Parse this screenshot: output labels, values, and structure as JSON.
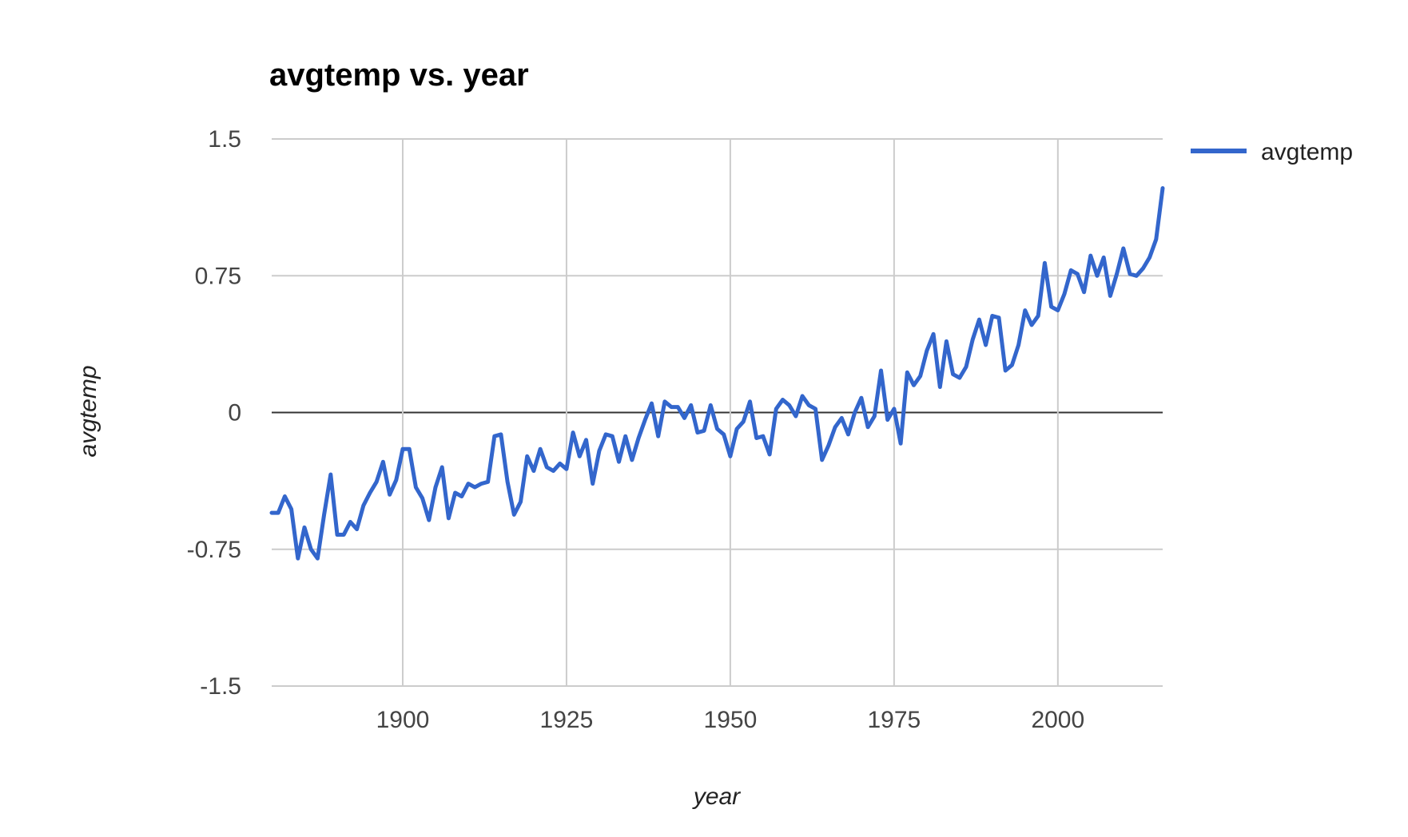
{
  "chart_data": {
    "type": "line",
    "title": "avgtemp vs. year",
    "xlabel": "year",
    "ylabel": "avgtemp",
    "xlim": [
      1880,
      2016
    ],
    "ylim": [
      -1.5,
      1.5
    ],
    "x_ticks": [
      "1900",
      "1925",
      "1950",
      "1975",
      "2000"
    ],
    "y_ticks": [
      "1.5",
      "0.75",
      "0",
      "-0.75",
      "-1.5"
    ],
    "grid": true,
    "legend_position": "right",
    "series": [
      {
        "name": "avgtemp",
        "color": "#3366cc",
        "x": [
          1880,
          1881,
          1882,
          1883,
          1884,
          1885,
          1886,
          1887,
          1888,
          1889,
          1890,
          1891,
          1892,
          1893,
          1894,
          1895,
          1896,
          1897,
          1898,
          1899,
          1900,
          1901,
          1902,
          1903,
          1904,
          1905,
          1906,
          1907,
          1908,
          1909,
          1910,
          1911,
          1912,
          1913,
          1914,
          1915,
          1916,
          1917,
          1918,
          1919,
          1920,
          1921,
          1922,
          1923,
          1924,
          1925,
          1926,
          1927,
          1928,
          1929,
          1930,
          1931,
          1932,
          1933,
          1934,
          1935,
          1936,
          1937,
          1938,
          1939,
          1940,
          1941,
          1942,
          1943,
          1944,
          1945,
          1946,
          1947,
          1948,
          1949,
          1950,
          1951,
          1952,
          1953,
          1954,
          1955,
          1956,
          1957,
          1958,
          1959,
          1960,
          1961,
          1962,
          1963,
          1964,
          1965,
          1966,
          1967,
          1968,
          1969,
          1970,
          1971,
          1972,
          1973,
          1974,
          1975,
          1976,
          1977,
          1978,
          1979,
          1980,
          1981,
          1982,
          1983,
          1984,
          1985,
          1986,
          1987,
          1988,
          1989,
          1990,
          1991,
          1992,
          1993,
          1994,
          1995,
          1996,
          1997,
          1998,
          1999,
          2000,
          2001,
          2002,
          2003,
          2004,
          2005,
          2006,
          2007,
          2008,
          2009,
          2010,
          2011,
          2012,
          2013,
          2014,
          2015,
          2016
        ],
        "y": [
          -0.55,
          -0.55,
          -0.46,
          -0.53,
          -0.8,
          -0.63,
          -0.75,
          -0.8,
          -0.56,
          -0.34,
          -0.67,
          -0.67,
          -0.6,
          -0.64,
          -0.51,
          -0.44,
          -0.38,
          -0.27,
          -0.45,
          -0.37,
          -0.2,
          -0.2,
          -0.41,
          -0.47,
          -0.59,
          -0.41,
          -0.3,
          -0.58,
          -0.44,
          -0.46,
          -0.39,
          -0.41,
          -0.39,
          -0.38,
          -0.13,
          -0.12,
          -0.38,
          -0.56,
          -0.49,
          -0.24,
          -0.32,
          -0.2,
          -0.3,
          -0.32,
          -0.28,
          -0.31,
          -0.11,
          -0.24,
          -0.15,
          -0.39,
          -0.21,
          -0.12,
          -0.13,
          -0.27,
          -0.13,
          -0.26,
          -0.14,
          -0.04,
          0.05,
          -0.13,
          0.06,
          0.03,
          0.03,
          -0.03,
          0.04,
          -0.11,
          -0.1,
          0.04,
          -0.09,
          -0.12,
          -0.24,
          -0.09,
          -0.05,
          0.06,
          -0.14,
          -0.13,
          -0.23,
          0.02,
          0.07,
          0.04,
          -0.02,
          0.09,
          0.04,
          0.02,
          -0.26,
          -0.18,
          -0.08,
          -0.03,
          -0.12,
          0.0,
          0.08,
          -0.08,
          -0.02,
          0.23,
          -0.04,
          0.02,
          -0.17,
          0.22,
          0.15,
          0.2,
          0.34,
          0.43,
          0.14,
          0.39,
          0.21,
          0.19,
          0.25,
          0.4,
          0.51,
          0.37,
          0.53,
          0.52,
          0.23,
          0.26,
          0.37,
          0.56,
          0.48,
          0.53,
          0.82,
          0.58,
          0.56,
          0.65,
          0.78,
          0.76,
          0.66,
          0.86,
          0.75,
          0.85,
          0.64,
          0.76,
          0.9,
          0.76,
          0.75,
          0.79,
          0.85,
          0.95,
          1.23
        ]
      }
    ]
  }
}
